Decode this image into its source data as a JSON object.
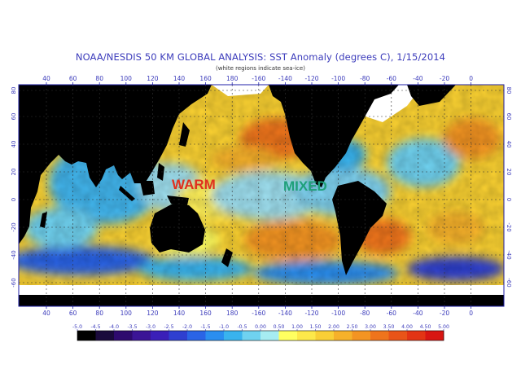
{
  "title": "NOAA/NESDIS 50 KM GLOBAL ANALYSIS: SST Anomaly (degrees C), 1/15/2014",
  "subtitle": "(white regions indicate sea-ice)",
  "map": {
    "lon_ticks": [
      "40",
      "60",
      "80",
      "100",
      "120",
      "140",
      "160",
      "180",
      "-160",
      "-140",
      "-120",
      "-100",
      "-80",
      "-60",
      "-40",
      "-20",
      "0"
    ],
    "lat_ticks": [
      "80",
      "60",
      "40",
      "20",
      "0",
      "-20",
      "-40",
      "-60"
    ],
    "annotations": [
      {
        "text": "WARM",
        "color": "#e0301e"
      },
      {
        "text": "MIXED",
        "color": "#1fa07a"
      }
    ],
    "colors": {
      "land": "#000000",
      "sea_ice": "#ffffff",
      "frame": "#2222aa",
      "grid": "#333333"
    }
  },
  "colorbar": {
    "labels": [
      "-5.0",
      "-4.5",
      "-4.0",
      "-3.5",
      "-3.0",
      "-2.5",
      "-2.0",
      "-1.5",
      "-1.0",
      "-0.5",
      "0.00",
      "0.50",
      "1.00",
      "1.50",
      "2.00",
      "2.50",
      "3.00",
      "3.50",
      "4.00",
      "4.50",
      "5.00"
    ],
    "colors": [
      "#000000",
      "#1a0a3c",
      "#2e0a6e",
      "#3b1496",
      "#3a1fb8",
      "#2f3fd0",
      "#2a64e6",
      "#2a8ef0",
      "#39b3ee",
      "#6fd2f0",
      "#a6ecf2",
      "#ffff60",
      "#fde84a",
      "#f9cf36",
      "#f6b12a",
      "#f39422",
      "#ef741c",
      "#e95418",
      "#e33414",
      "#d81512"
    ]
  }
}
